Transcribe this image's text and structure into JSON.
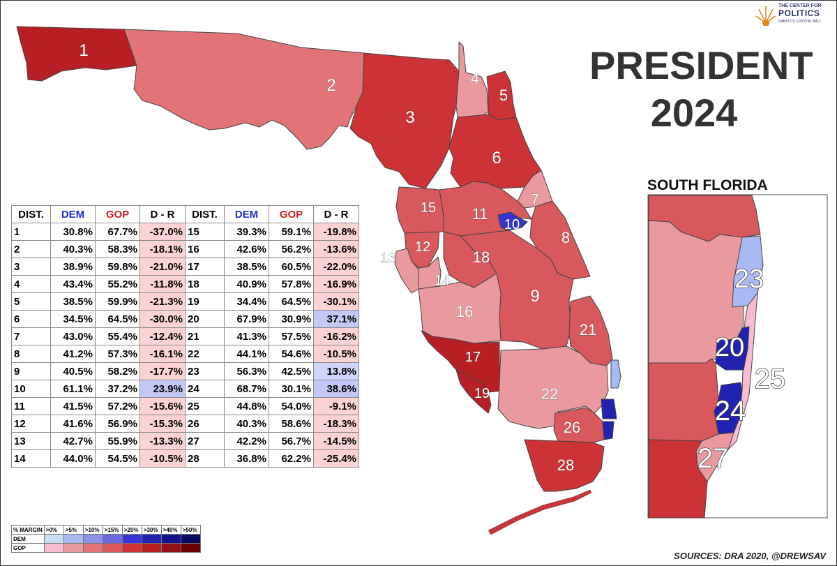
{
  "title": {
    "line1": "PRESIDENT",
    "line2": "2024"
  },
  "inset_title": "SOUTH FLORIDA",
  "sources": "SOURCES: DRA 2020, @DREWSAV",
  "logo": {
    "top": "THE CENTER FOR",
    "main": "POLITICS",
    "sub": "SABATO'S CRYSTAL BALL"
  },
  "table": {
    "headers": {
      "dist": "DIST.",
      "dem": "DEM",
      "gop": "GOP",
      "margin": "D - R"
    },
    "rows": [
      {
        "d": "1",
        "dem": "30.8%",
        "gop": "67.7%",
        "m": "-37.0%",
        "v": -37.0
      },
      {
        "d": "2",
        "dem": "40.3%",
        "gop": "58.3%",
        "m": "-18.1%",
        "v": -18.1
      },
      {
        "d": "3",
        "dem": "38.9%",
        "gop": "59.8%",
        "m": "-21.0%",
        "v": -21.0
      },
      {
        "d": "4",
        "dem": "43.4%",
        "gop": "55.2%",
        "m": "-11.8%",
        "v": -11.8
      },
      {
        "d": "5",
        "dem": "38.5%",
        "gop": "59.9%",
        "m": "-21.3%",
        "v": -21.3
      },
      {
        "d": "6",
        "dem": "34.5%",
        "gop": "64.5%",
        "m": "-30.0%",
        "v": -30.0
      },
      {
        "d": "7",
        "dem": "43.0%",
        "gop": "55.4%",
        "m": "-12.4%",
        "v": -12.4
      },
      {
        "d": "8",
        "dem": "41.2%",
        "gop": "57.3%",
        "m": "-16.1%",
        "v": -16.1
      },
      {
        "d": "9",
        "dem": "40.5%",
        "gop": "58.2%",
        "m": "-17.7%",
        "v": -17.7
      },
      {
        "d": "10",
        "dem": "61.1%",
        "gop": "37.2%",
        "m": "23.9%",
        "v": 23.9
      },
      {
        "d": "11",
        "dem": "41.5%",
        "gop": "57.2%",
        "m": "-15.6%",
        "v": -15.6
      },
      {
        "d": "12",
        "dem": "41.6%",
        "gop": "56.9%",
        "m": "-15.3%",
        "v": -15.3
      },
      {
        "d": "13",
        "dem": "42.7%",
        "gop": "55.9%",
        "m": "-13.3%",
        "v": -13.3
      },
      {
        "d": "14",
        "dem": "44.0%",
        "gop": "54.5%",
        "m": "-10.5%",
        "v": -10.5
      },
      {
        "d": "15",
        "dem": "39.3%",
        "gop": "59.1%",
        "m": "-19.8%",
        "v": -19.8
      },
      {
        "d": "16",
        "dem": "42.6%",
        "gop": "56.2%",
        "m": "-13.6%",
        "v": -13.6
      },
      {
        "d": "17",
        "dem": "38.5%",
        "gop": "60.5%",
        "m": "-22.0%",
        "v": -22.0
      },
      {
        "d": "18",
        "dem": "40.9%",
        "gop": "57.8%",
        "m": "-16.9%",
        "v": -16.9
      },
      {
        "d": "19",
        "dem": "34.4%",
        "gop": "64.5%",
        "m": "-30.1%",
        "v": -30.1
      },
      {
        "d": "20",
        "dem": "67.9%",
        "gop": "30.9%",
        "m": "37.1%",
        "v": 37.1
      },
      {
        "d": "21",
        "dem": "41.3%",
        "gop": "57.5%",
        "m": "-16.2%",
        "v": -16.2
      },
      {
        "d": "22",
        "dem": "44.1%",
        "gop": "54.6%",
        "m": "-10.5%",
        "v": -10.5
      },
      {
        "d": "23",
        "dem": "56.3%",
        "gop": "42.5%",
        "m": "13.8%",
        "v": 13.8
      },
      {
        "d": "24",
        "dem": "68.7%",
        "gop": "30.1%",
        "m": "38.6%",
        "v": 38.6
      },
      {
        "d": "25",
        "dem": "44.8%",
        "gop": "54.0%",
        "m": "-9.1%",
        "v": -9.1
      },
      {
        "d": "26",
        "dem": "40.3%",
        "gop": "58.6%",
        "m": "-18.3%",
        "v": -18.3
      },
      {
        "d": "27",
        "dem": "42.2%",
        "gop": "56.7%",
        "m": "-14.5%",
        "v": -14.5
      },
      {
        "d": "28",
        "dem": "36.8%",
        "gop": "62.2%",
        "m": "-25.4%",
        "v": -25.4
      }
    ]
  },
  "legend": {
    "header": "% MARGIN",
    "bins": [
      ">0%",
      ">5%",
      ">10%",
      ">15%",
      ">20%",
      ">30%",
      ">40%",
      ">50%"
    ],
    "rows": [
      {
        "label": "DEM",
        "colors": [
          "#c9dcf6",
          "#a9b9f3",
          "#8c92e6",
          "#6c69e0",
          "#3535d4",
          "#2222b0",
          "#12128c",
          "#0a0a62"
        ]
      },
      {
        "label": "GOP",
        "colors": [
          "#f7bcd2",
          "#ea9a9e",
          "#e27478",
          "#d8585c",
          "#cc3236",
          "#b81f24",
          "#951015",
          "#6a0206"
        ]
      }
    ]
  },
  "map": {
    "district_labels": [
      {
        "id": "1",
        "text": "1"
      },
      {
        "id": "2",
        "text": "2"
      },
      {
        "id": "3",
        "text": "3"
      },
      {
        "id": "4",
        "text": "4"
      },
      {
        "id": "5",
        "text": "5"
      },
      {
        "id": "6",
        "text": "6"
      },
      {
        "id": "7",
        "text": "7"
      },
      {
        "id": "8",
        "text": "8"
      },
      {
        "id": "9",
        "text": "9"
      },
      {
        "id": "10",
        "text": "10"
      },
      {
        "id": "11",
        "text": "11"
      },
      {
        "id": "12",
        "text": "12"
      },
      {
        "id": "13",
        "text": "13"
      },
      {
        "id": "14",
        "text": "14"
      },
      {
        "id": "15",
        "text": "15"
      },
      {
        "id": "16",
        "text": "16"
      },
      {
        "id": "17",
        "text": "17"
      },
      {
        "id": "18",
        "text": "18"
      },
      {
        "id": "19",
        "text": "19"
      },
      {
        "id": "21",
        "text": "21"
      },
      {
        "id": "22",
        "text": "22"
      },
      {
        "id": "26",
        "text": "26"
      },
      {
        "id": "28",
        "text": "28"
      }
    ],
    "inset_labels": [
      {
        "id": "23",
        "text": "23"
      },
      {
        "id": "20",
        "text": "20"
      },
      {
        "id": "25",
        "text": "25"
      },
      {
        "id": "24",
        "text": "24"
      },
      {
        "id": "27",
        "text": "27"
      }
    ]
  }
}
